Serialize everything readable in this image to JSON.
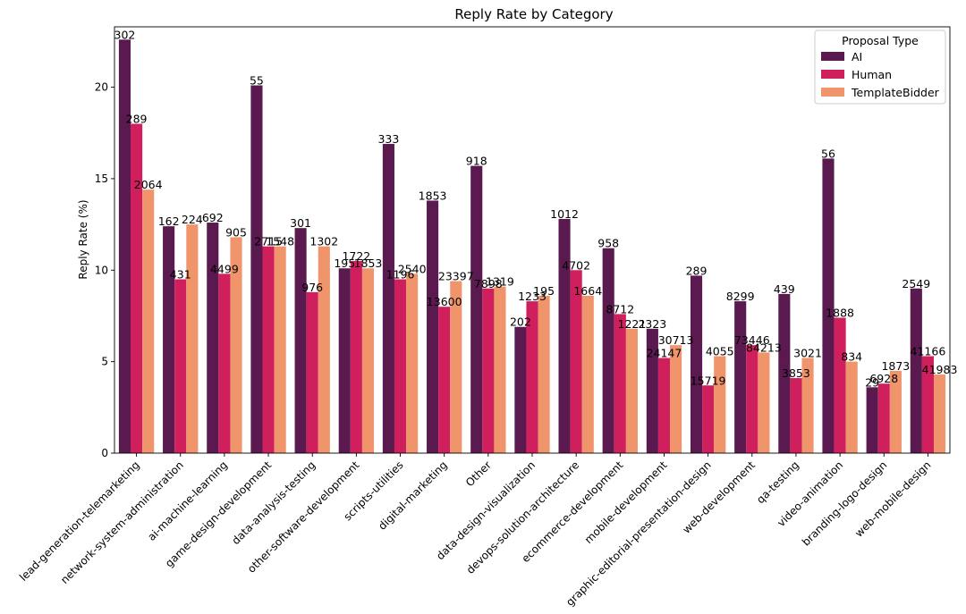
{
  "chart_data": {
    "type": "bar",
    "title": "Reply Rate by Category",
    "xlabel": "",
    "ylabel": "Reply Rate (%)",
    "ylim": [
      0,
      23.3
    ],
    "yticks": [
      0,
      5,
      10,
      15,
      20
    ],
    "grid": false,
    "legend": {
      "title": "Proposal Type",
      "placement": "top-right"
    },
    "categories": [
      "lead-generation-telemarketing",
      "network-system-administration",
      "ai-machine-learning",
      "game-design-development",
      "data-analysis-testing",
      "other-software-development",
      "scripts-utilities",
      "digital-marketing",
      "Other",
      "data-design-visualization",
      "devops-solution-architecture",
      "ecommerce-development",
      "mobile-development",
      "graphic-editorial-presentation-design",
      "web-development",
      "qa-testing",
      "video-animation",
      "branding-logo-design",
      "web-mobile-design"
    ],
    "series": [
      {
        "name": "AI",
        "color": "#5b1a4f",
        "values": [
          22.6,
          12.4,
          12.6,
          20.1,
          12.3,
          10.1,
          16.9,
          13.8,
          15.7,
          6.9,
          12.8,
          11.2,
          6.8,
          9.7,
          8.3,
          8.7,
          16.1,
          3.6,
          9.0
        ],
        "labels": [
          "302",
          "162",
          "692",
          "55",
          "301",
          "195",
          "333",
          "1853",
          "918",
          "202",
          "1012",
          "958",
          "2323",
          "289",
          "8299",
          "439",
          "56",
          "29",
          "2549"
        ]
      },
      {
        "name": "Human",
        "color": "#cf1f5c",
        "values": [
          18.0,
          9.5,
          9.8,
          11.3,
          8.8,
          10.5,
          9.5,
          8.0,
          9.0,
          8.3,
          10.0,
          7.6,
          5.2,
          3.7,
          5.9,
          4.1,
          7.4,
          3.8,
          5.3
        ],
        "labels": [
          "289",
          "431",
          "4499",
          "2715",
          "976",
          "1722",
          "1196",
          "13600",
          "7898",
          "1233",
          "4702",
          "8712",
          "24147",
          "15719",
          "73446",
          "3853",
          "1888",
          "6928",
          "41166"
        ]
      },
      {
        "name": "TemplateBidder",
        "color": "#f0946c",
        "values": [
          14.4,
          12.5,
          11.8,
          11.3,
          11.3,
          10.1,
          9.8,
          9.4,
          9.1,
          8.6,
          8.6,
          6.8,
          5.9,
          5.3,
          5.5,
          5.2,
          5.0,
          4.5,
          4.3
        ],
        "labels": [
          "2064",
          "224",
          "905",
          "1548",
          "1302",
          "1853",
          "2540",
          "23397",
          "1319",
          "195",
          "1664",
          "1221",
          "30713",
          "4055",
          "84213",
          "3021",
          "834",
          "1873",
          "41983"
        ]
      }
    ]
  }
}
